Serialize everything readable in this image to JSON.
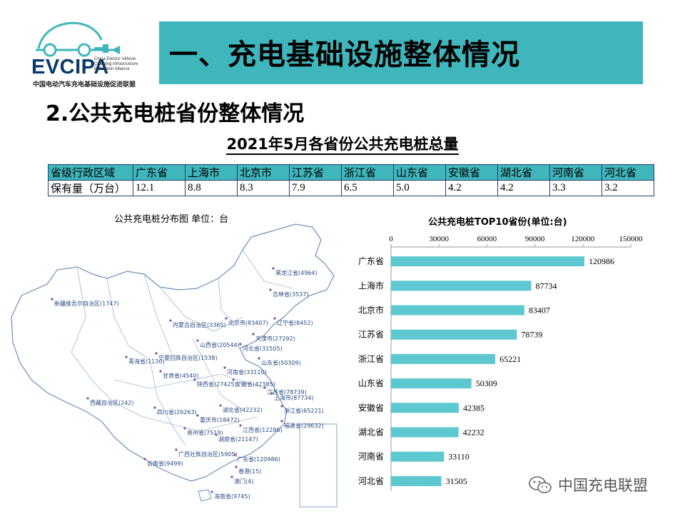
{
  "header": {
    "logo_text": "EVCIPA",
    "logo_tagline": "China Electric Vehicle Charging Infrastructure Promotion Alliance",
    "logo_subtitle": "中国电动汽车充电基础设施促进联盟",
    "title": "一、充电基础设施整体情况",
    "title_bar_color": "#3fb6bc"
  },
  "section_title": "2.公共充电桩省份整体情况",
  "table": {
    "title": "2021年5月各省份公共充电桩总量",
    "header": [
      "省级行政区域",
      "广东省",
      "上海市",
      "北京市",
      "江苏省",
      "浙江省",
      "山东省",
      "安徽省",
      "湖北省",
      "河南省",
      "河北省"
    ],
    "row": [
      "保有量（万台）",
      "12.1",
      "8.8",
      "8.3",
      "7.9",
      "6.5",
      "5.0",
      "4.2",
      "4.2",
      "3.3",
      "3.2"
    ]
  },
  "map": {
    "title": "公共充电桩分布图   单位：台",
    "labels": [
      "黑龙江省(4964)",
      "吉林省(3537)",
      "新疆维吾尔自治区(1747)",
      "内蒙古自治区(3365)",
      "北京市(83407)",
      "辽宁省(8452)",
      "天津市(27292)",
      "山西省(20544)",
      "河北省(31505)",
      "宁夏回族自治区(1538)",
      "青海省(1130)",
      "甘肃省(4540)",
      "山东省(50309)",
      "河南省(33110)",
      "陕西省(27425)",
      "安徽省(42385)",
      "江苏省(78739)",
      "上海市(87734)",
      "西藏自治区(242)",
      "四川省(26263)",
      "湖北省(42232)",
      "浙江省(65221)",
      "重庆市(18472)",
      "福建省(29632)",
      "江西省(12286)",
      "贵州省(7519)",
      "湖南省(21147)",
      "广西壮族自治区(5905)",
      "广东省(120986)",
      "云南省(9499)",
      "香港(15)",
      "澳门(4)",
      "海南省(9745)"
    ]
  },
  "chart_data": {
    "type": "bar",
    "orientation": "horizontal",
    "title": "公共充电桩TOP10省份(单位:台)",
    "categories": [
      "广东省",
      "上海市",
      "北京市",
      "江苏省",
      "浙江省",
      "山东省",
      "安徽省",
      "湖北省",
      "河南省",
      "河北省"
    ],
    "values": [
      120986,
      87734,
      83407,
      78739,
      65221,
      50309,
      42385,
      42232,
      33110,
      31505
    ],
    "xlim": [
      0,
      150000
    ],
    "ticks": [
      "0",
      "30000",
      "60000",
      "90000",
      "120000",
      "150000"
    ],
    "bar_color": "#5ec8d0",
    "axis_position": "top",
    "grid": false
  },
  "watermark": {
    "text": "中国充电联盟"
  }
}
